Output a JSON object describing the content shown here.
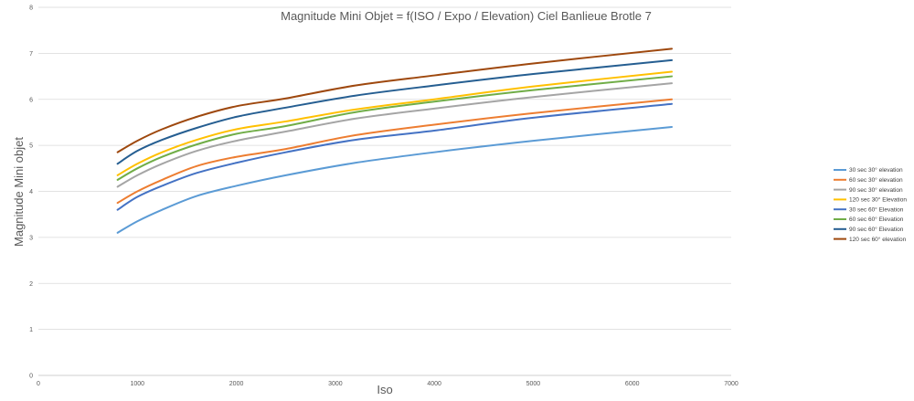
{
  "chart_data": {
    "type": "line",
    "title": "Magnitude Mini Objet = f(ISO / Expo / Elevation) Ciel Banlieue Brotle 7",
    "xlabel": "Iso",
    "ylabel": "Magnitude Mini objet",
    "xlim": [
      0,
      7000
    ],
    "ylim": [
      0,
      8
    ],
    "xticks": [
      0,
      1000,
      2000,
      3000,
      4000,
      5000,
      6000,
      7000
    ],
    "yticks": [
      0,
      1,
      2,
      3,
      4,
      5,
      6,
      7,
      8
    ],
    "grid": "horizontal",
    "legend": "right",
    "series": [
      {
        "name": "30 sec 30° elevation",
        "color": "#5B9BD5",
        "x": [
          800,
          1000,
          1250,
          1600,
          2000,
          2500,
          3200,
          4000,
          5000,
          6400
        ],
        "y": [
          3.1,
          3.35,
          3.6,
          3.9,
          4.12,
          4.35,
          4.62,
          4.85,
          5.1,
          5.4
        ]
      },
      {
        "name": "60 sec 30° elevation",
        "color": "#ED7D31",
        "x": [
          800,
          1000,
          1250,
          1600,
          2000,
          2500,
          3200,
          4000,
          5000,
          6400
        ],
        "y": [
          3.75,
          4.0,
          4.25,
          4.55,
          4.75,
          4.92,
          5.22,
          5.45,
          5.7,
          6.0
        ]
      },
      {
        "name": "90 sec 30° elevation",
        "color": "#A5A5A5",
        "x": [
          800,
          1000,
          1250,
          1600,
          2000,
          2500,
          3200,
          4000,
          5000,
          6400
        ],
        "y": [
          4.1,
          4.35,
          4.6,
          4.88,
          5.1,
          5.3,
          5.58,
          5.8,
          6.05,
          6.35
        ]
      },
      {
        "name": "120 sec 30° Elevation",
        "color": "#FFC000",
        "x": [
          800,
          1000,
          1250,
          1600,
          2000,
          2500,
          3200,
          4000,
          5000,
          6400
        ],
        "y": [
          4.35,
          4.6,
          4.85,
          5.12,
          5.35,
          5.52,
          5.78,
          6.0,
          6.28,
          6.6
        ]
      },
      {
        "name": "30 sec 60° Elevation",
        "color": "#4472C4",
        "x": [
          800,
          1000,
          1250,
          1600,
          2000,
          2500,
          3200,
          4000,
          5000,
          6400
        ],
        "y": [
          3.6,
          3.88,
          4.12,
          4.4,
          4.62,
          4.85,
          5.12,
          5.32,
          5.6,
          5.9
        ]
      },
      {
        "name": "60 sec 60° Elevation",
        "color": "#70AD47",
        "x": [
          800,
          1000,
          1250,
          1600,
          2000,
          2500,
          3200,
          4000,
          5000,
          6400
        ],
        "y": [
          4.25,
          4.5,
          4.75,
          5.02,
          5.25,
          5.42,
          5.72,
          5.95,
          6.2,
          6.5
        ]
      },
      {
        "name": "90 sec 60° Elevation",
        "color": "#255E91",
        "x": [
          800,
          1000,
          1250,
          1600,
          2000,
          2500,
          3200,
          4000,
          5000,
          6400
        ],
        "y": [
          4.6,
          4.88,
          5.12,
          5.38,
          5.62,
          5.82,
          6.08,
          6.3,
          6.55,
          6.85
        ]
      },
      {
        "name": "120 sec 60° elevation",
        "color": "#9E480E",
        "x": [
          800,
          1000,
          1250,
          1600,
          2000,
          2500,
          3200,
          4000,
          5000,
          6400
        ],
        "y": [
          4.85,
          5.1,
          5.35,
          5.62,
          5.85,
          6.02,
          6.3,
          6.52,
          6.78,
          7.1
        ]
      }
    ]
  }
}
